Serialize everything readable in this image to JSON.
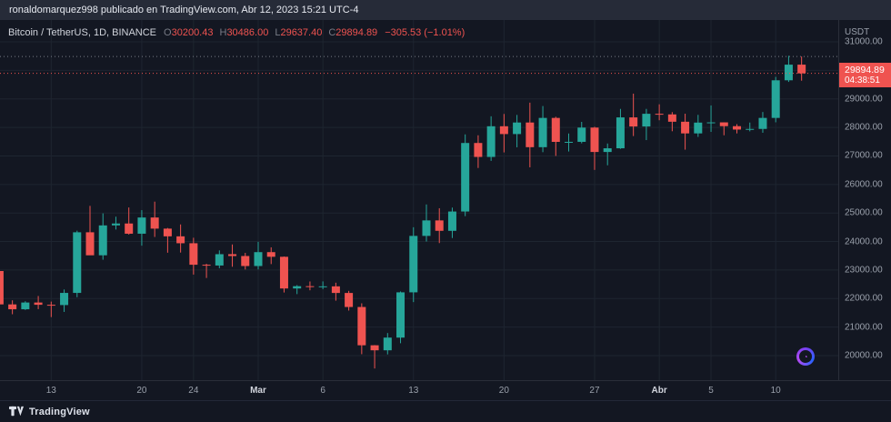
{
  "header": {
    "text": "ronaldomarquez998 publicado en TradingView.com, Abr 12, 2023 15:21 UTC-4"
  },
  "legend": {
    "symbol": "Bitcoin / TetherUS, 1D, BINANCE",
    "ohlc": [
      {
        "label": "O",
        "value": "30200.43"
      },
      {
        "label": "H",
        "value": "30486.00"
      },
      {
        "label": "L",
        "value": "29637.40"
      },
      {
        "label": "C",
        "value": "29894.89"
      }
    ],
    "change": "−305.53 (−1.01%)"
  },
  "price_axis": {
    "currency": "USDT",
    "labels": [
      {
        "text": "31000.00",
        "value": 31000
      },
      {
        "text": "30000.00",
        "value": 30000
      },
      {
        "text": "29000.00",
        "value": 29000
      },
      {
        "text": "28000.00",
        "value": 28000
      },
      {
        "text": "27000.00",
        "value": 27000
      },
      {
        "text": "26000.00",
        "value": 26000
      },
      {
        "text": "25000.00",
        "value": 25000
      },
      {
        "text": "24000.00",
        "value": 24000
      },
      {
        "text": "23000.00",
        "value": 23000
      },
      {
        "text": "22000.00",
        "value": 22000
      },
      {
        "text": "21000.00",
        "value": 21000
      },
      {
        "text": "20000.00",
        "value": 20000
      }
    ],
    "badge": {
      "price": "29894.89",
      "countdown": "04:38:51",
      "value": 29894.89,
      "color": "#ef5350"
    }
  },
  "time_axis": {
    "labels": [
      {
        "text": "13",
        "i": 4,
        "major": false
      },
      {
        "text": "20",
        "i": 11,
        "major": false
      },
      {
        "text": "24",
        "i": 15,
        "major": false
      },
      {
        "text": "Mar",
        "i": 20,
        "major": true
      },
      {
        "text": "6",
        "i": 25,
        "major": false
      },
      {
        "text": "13",
        "i": 32,
        "major": false
      },
      {
        "text": "20",
        "i": 39,
        "major": false
      },
      {
        "text": "27",
        "i": 46,
        "major": false
      },
      {
        "text": "Abr",
        "i": 51,
        "major": true
      },
      {
        "text": "5",
        "i": 55,
        "major": false
      },
      {
        "text": "10",
        "i": 60,
        "major": false
      }
    ]
  },
  "footer": {
    "brand": "TradingView"
  },
  "colors": {
    "background": "#131722",
    "header_bg": "#262b38",
    "grid": "#1e2530",
    "axis_text": "#9aa0ab",
    "up": "#26a69a",
    "down": "#ef5350"
  },
  "chart_data": {
    "type": "candlestick",
    "title": "Bitcoin / TetherUS, 1D, BINANCE",
    "interval": "1D",
    "exchange": "BINANCE",
    "currency": "USDT",
    "ylim": [
      19140,
      31765
    ],
    "ylabel": "USDT",
    "grid": true,
    "up_color": "#26a69a",
    "down_color": "#ef5350",
    "price_lines": [
      {
        "value": 30486.0,
        "color": "#787b86"
      },
      {
        "value": 29894.89,
        "color": "#ef5350"
      }
    ],
    "candles": [
      [
        22966,
        23011,
        21697,
        21796
      ],
      [
        21796,
        21938,
        21451,
        21625
      ],
      [
        21625,
        21906,
        21600,
        21862
      ],
      [
        21862,
        22090,
        21630,
        21783
      ],
      [
        21783,
        21894,
        21351,
        21773
      ],
      [
        21773,
        22319,
        21532,
        22199
      ],
      [
        22199,
        24380,
        22048,
        24324
      ],
      [
        24324,
        25250,
        23573,
        23517
      ],
      [
        23517,
        24987,
        23362,
        24565
      ],
      [
        24565,
        24871,
        24421,
        24632
      ],
      [
        24632,
        25193,
        24243,
        24274
      ],
      [
        24274,
        25100,
        23854,
        24842
      ],
      [
        24842,
        25398,
        24160,
        24452
      ],
      [
        24452,
        24475,
        23608,
        24182
      ],
      [
        24182,
        24599,
        23613,
        23940
      ],
      [
        23940,
        24132,
        22841,
        23186
      ],
      [
        23186,
        23219,
        22722,
        23159
      ],
      [
        23159,
        23689,
        23062,
        23556
      ],
      [
        23556,
        23897,
        23116,
        23492
      ],
      [
        23492,
        23602,
        23020,
        23141
      ],
      [
        23141,
        23990,
        23021,
        23628
      ],
      [
        23628,
        23796,
        23209,
        23465
      ],
      [
        23465,
        23476,
        22213,
        22354
      ],
      [
        22354,
        22472,
        22157,
        22435
      ],
      [
        22435,
        22600,
        22290,
        22410
      ],
      [
        22410,
        22602,
        22331,
        22429
      ],
      [
        22429,
        22557,
        21927,
        22197
      ],
      [
        22197,
        22270,
        21580,
        21705
      ],
      [
        21705,
        21834,
        20050,
        20363
      ],
      [
        20363,
        20370,
        19549,
        20187
      ],
      [
        20187,
        20792,
        20042,
        20632
      ],
      [
        20632,
        22250,
        20435,
        22219
      ],
      [
        22219,
        24500,
        21877,
        24197
      ],
      [
        24197,
        25300,
        24000,
        24740
      ],
      [
        24740,
        25167,
        23946,
        24375
      ],
      [
        24375,
        25190,
        24123,
        25052
      ],
      [
        25052,
        27756,
        24890,
        27454
      ],
      [
        27454,
        27724,
        26578,
        26965
      ],
      [
        26965,
        28390,
        26827,
        28041
      ],
      [
        28041,
        28472,
        27124,
        27767
      ],
      [
        27767,
        28438,
        27303,
        28172
      ],
      [
        28172,
        28868,
        26601,
        27307
      ],
      [
        27307,
        28750,
        27132,
        28333
      ],
      [
        28333,
        28374,
        27000,
        27493
      ],
      [
        27493,
        27787,
        27156,
        27494
      ],
      [
        27494,
        28194,
        27442,
        27994
      ],
      [
        27994,
        28023,
        26510,
        27139
      ],
      [
        27139,
        27436,
        26672,
        27268
      ],
      [
        27268,
        28649,
        27248,
        28351
      ],
      [
        28351,
        29184,
        27697,
        28033
      ],
      [
        28033,
        28650,
        27555,
        28478
      ],
      [
        28478,
        28810,
        28251,
        28456
      ],
      [
        28456,
        28536,
        27866,
        28199
      ],
      [
        28199,
        28480,
        27220,
        27790
      ],
      [
        27790,
        28440,
        27667,
        28169
      ],
      [
        28169,
        28770,
        27843,
        28177
      ],
      [
        28177,
        28179,
        27724,
        28044
      ],
      [
        28044,
        28113,
        27790,
        27925
      ],
      [
        27925,
        28171,
        27862,
        27947
      ],
      [
        27947,
        28540,
        27813,
        28333
      ],
      [
        28333,
        29771,
        28180,
        29652
      ],
      [
        29652,
        30510,
        29595,
        30200
      ],
      [
        30200.43,
        30486.0,
        29637.4,
        29894.89
      ]
    ]
  }
}
